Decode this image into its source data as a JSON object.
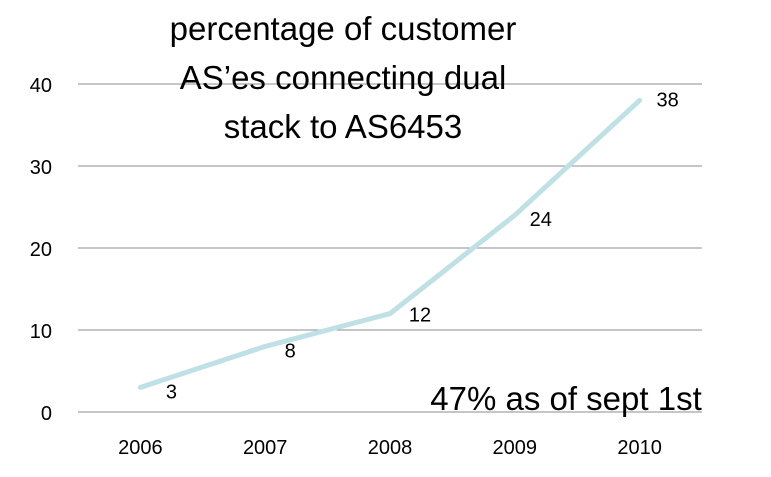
{
  "chart_data": {
    "type": "line",
    "title_lines": [
      "percentage of customer",
      "AS’es connecting dual",
      "stack to  AS6453"
    ],
    "categories": [
      "2006",
      "2007",
      "2008",
      "2009",
      "2010"
    ],
    "series": [
      {
        "values": [
          3,
          8,
          12,
          24,
          38
        ],
        "color": "#bfe0e4"
      }
    ],
    "data_labels": [
      "3",
      "8",
      "12",
      "24",
      "38"
    ],
    "ylim": [
      0,
      40
    ],
    "yticks": [
      0,
      10,
      20,
      30,
      40
    ],
    "ytick_labels": [
      "0",
      "10",
      "20",
      "30",
      "40"
    ],
    "grid": true,
    "gridline_color": "#8c8c8c",
    "legend": "none",
    "annotation": "47% as of sept 1st"
  }
}
